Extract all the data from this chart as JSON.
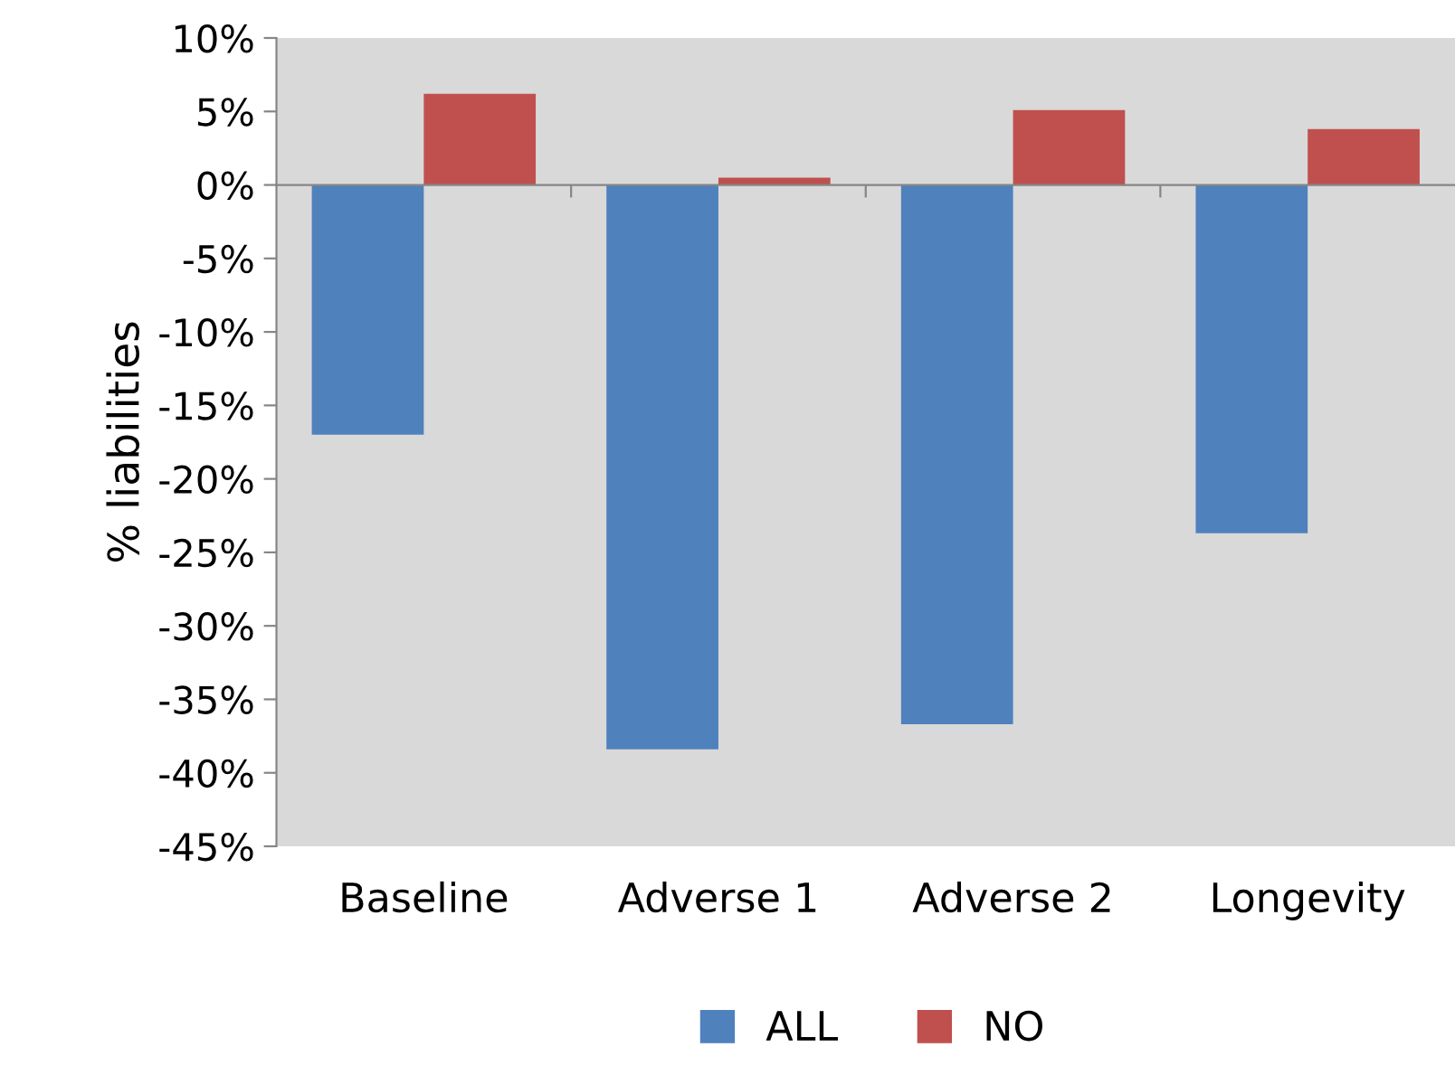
{
  "chart_data": {
    "type": "bar",
    "ylabel": "% liabilities",
    "categories": [
      "Baseline",
      "Adverse 1",
      "Adverse 2",
      "Longevity"
    ],
    "series": [
      {
        "name": "ALL",
        "color": "#4f81bd",
        "values": [
          -17.0,
          -38.4,
          -36.7,
          -23.7
        ]
      },
      {
        "name": "NO",
        "color": "#c0504d",
        "values": [
          6.2,
          0.5,
          5.1,
          3.8
        ]
      }
    ],
    "ylim": [
      -45,
      10
    ],
    "yticks": [
      {
        "value": -45,
        "label": "-45%"
      },
      {
        "value": -40,
        "label": "-40%"
      },
      {
        "value": -35,
        "label": "-35%"
      },
      {
        "value": -30,
        "label": "-30%"
      },
      {
        "value": -25,
        "label": "-25%"
      },
      {
        "value": -20,
        "label": "-20%"
      },
      {
        "value": -15,
        "label": "-15%"
      },
      {
        "value": -10,
        "label": "-10%"
      },
      {
        "value": -5,
        "label": "-5%"
      },
      {
        "value": 0,
        "label": "0%"
      },
      {
        "value": 5,
        "label": "5%"
      },
      {
        "value": 10,
        "label": "10%"
      }
    ],
    "legend": "bottom"
  }
}
